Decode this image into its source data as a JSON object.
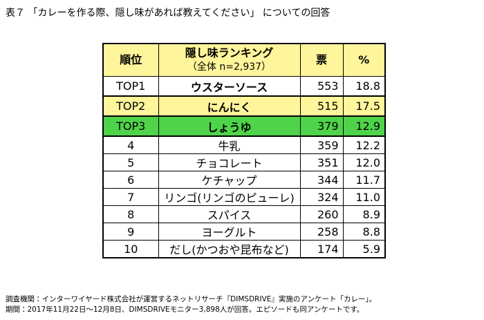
{
  "title": "表７ 「カレーを作る際、隠し味があれば教えてください」 についての回答",
  "table": {
    "header": [
      "順位",
      "隠し味ランキング",
      "票",
      "%"
    ],
    "header_sub": "（全体 n=2,937）",
    "rows": [
      [
        "TOP1",
        "ウスターソース",
        553,
        "18.8"
      ],
      [
        "TOP2",
        "にんにく",
        515,
        "17.5"
      ],
      [
        "TOP3",
        "しょうゆ",
        379,
        "12.9"
      ],
      [
        "4",
        "牛乳",
        359,
        "12.2"
      ],
      [
        "5",
        "チョコレート",
        351,
        "12.0"
      ],
      [
        "6",
        "ケチャップ",
        344,
        "11.7"
      ],
      [
        "7",
        "リンゴ(リンゴのピューレ)",
        324,
        "11.0"
      ],
      [
        "8",
        "スパイス",
        260,
        "8.9"
      ],
      [
        "9",
        "ヨーグルト",
        258,
        "8.8"
      ],
      [
        "10",
        "だし(かつおや昆布など)",
        174,
        "5.9"
      ]
    ]
  },
  "footnotes": [
    "調査機関：インターワイヤード株式会社が運営するネットリサーチ『DIMSDRIVE』実施のアンケート「カレー」。",
    "期間：2017年11月22日～12月8日、DIMSDRIVEモニター3,898人が回答。エピソードも同アンケートです。"
  ]
}
